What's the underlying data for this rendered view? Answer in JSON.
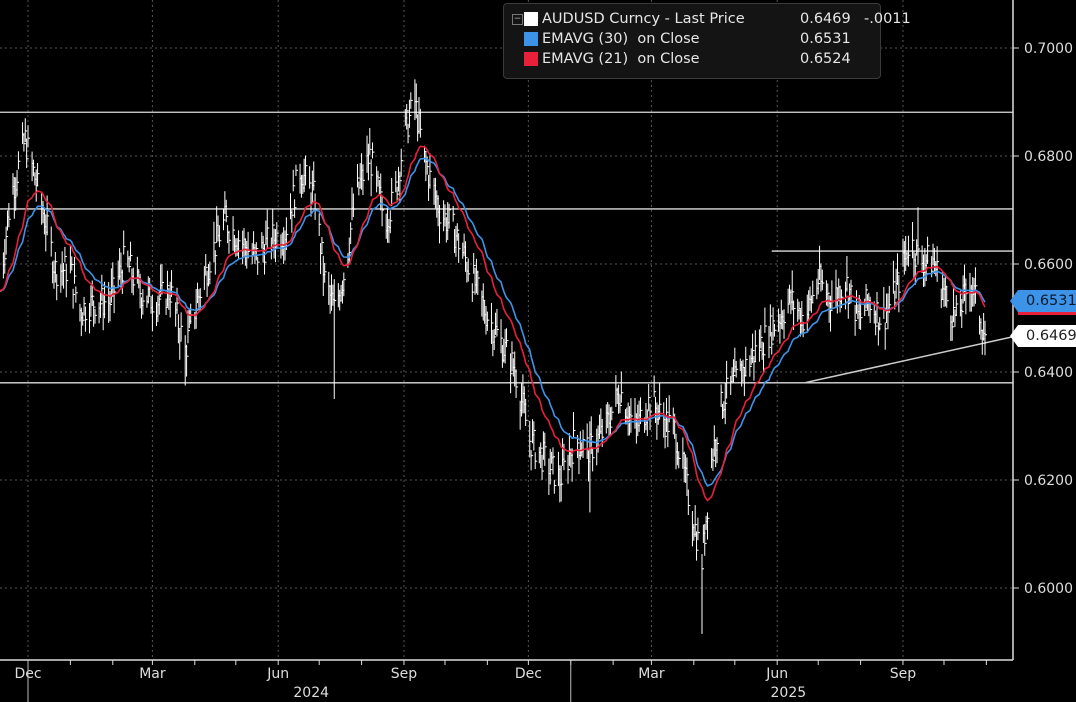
{
  "chart_data": {
    "type": "line",
    "title": "AUDUSD Curncy - Last Price",
    "ylim": [
      0.591,
      0.7045
    ],
    "y_ticks": [
      "0.7000",
      "0.6800",
      "0.6600",
      "0.6400",
      "0.6200",
      "0.6000"
    ],
    "x_ticks": [
      {
        "label": "Dec",
        "date": "2023-12-01"
      },
      {
        "label": "Mar",
        "date": "2024-03-01"
      },
      {
        "label": "Jun",
        "date": "2024-06-01"
      },
      {
        "label": "Sep",
        "date": "2024-09-01"
      },
      {
        "label": "Dec",
        "date": "2024-12-01"
      },
      {
        "label": "Mar",
        "date": "2025-03-01"
      },
      {
        "label": "Jun",
        "date": "2025-06-01"
      },
      {
        "label": "Sep",
        "date": "2025-09-01"
      }
    ],
    "year_labels": [
      {
        "label": "2024",
        "date": "2024-07-01"
      },
      {
        "label": "2025",
        "date": "2025-06-15"
      }
    ],
    "legend": [
      {
        "name": "AUDUSD Curncy - Last Price",
        "value": "0.6469",
        "change": "-.0011",
        "color": "#ffffff"
      },
      {
        "name": "EMAVG (30)  on Close",
        "value": "0.6531",
        "color": "#3d93e8"
      },
      {
        "name": "EMAVG (21)  on Close",
        "value": "0.6524",
        "color": "#e8203a"
      }
    ],
    "last_price_tag": "0.6469",
    "ema30_tag": "0.6531",
    "series": [
      {
        "name": "AUDUSD close",
        "points": [
          [
            "2023-11-10",
            0.655
          ],
          [
            "2023-11-18",
            0.672
          ],
          [
            "2023-11-29",
            0.683
          ],
          [
            "2023-12-10",
            0.672
          ],
          [
            "2023-12-21",
            0.659
          ],
          [
            "2024-01-01",
            0.659
          ],
          [
            "2024-01-08",
            0.6515
          ],
          [
            "2024-01-19",
            0.653
          ],
          [
            "2024-01-30",
            0.653
          ],
          [
            "2024-02-10",
            0.661
          ],
          [
            "2024-02-21",
            0.655
          ],
          [
            "2024-03-03",
            0.653
          ],
          [
            "2024-03-14",
            0.655
          ],
          [
            "2024-03-25",
            0.644
          ],
          [
            "2024-04-01",
            0.6515
          ],
          [
            "2024-04-12",
            0.661
          ],
          [
            "2024-04-23",
            0.668
          ],
          [
            "2024-05-04",
            0.6645
          ],
          [
            "2024-05-15",
            0.661
          ],
          [
            "2024-05-26",
            0.6645
          ],
          [
            "2024-06-06",
            0.666
          ],
          [
            "2024-06-17",
            0.6775
          ],
          [
            "2024-06-28",
            0.672
          ],
          [
            "2024-07-05",
            0.657
          ],
          [
            "2024-07-12",
            0.6515
          ],
          [
            "2024-07-20",
            0.659
          ],
          [
            "2024-07-27",
            0.672
          ],
          [
            "2024-08-07",
            0.68
          ],
          [
            "2024-08-18",
            0.668
          ],
          [
            "2024-08-25",
            0.672
          ],
          [
            "2024-09-02",
            0.6848
          ],
          [
            "2024-09-09",
            0.69
          ],
          [
            "2024-09-16",
            0.6793
          ],
          [
            "2024-09-27",
            0.67
          ],
          [
            "2024-10-08",
            0.666
          ],
          [
            "2024-10-19",
            0.659
          ],
          [
            "2024-10-30",
            0.6515
          ],
          [
            "2024-11-10",
            0.646
          ],
          [
            "2024-11-21",
            0.6406
          ],
          [
            "2024-12-02",
            0.6274
          ],
          [
            "2024-12-13",
            0.6237
          ],
          [
            "2024-12-24",
            0.62
          ],
          [
            "2025-01-04",
            0.6274
          ],
          [
            "2025-01-15",
            0.6256
          ],
          [
            "2025-01-26",
            0.6293
          ],
          [
            "2025-02-06",
            0.6367
          ],
          [
            "2025-02-17",
            0.6293
          ],
          [
            "2025-02-28",
            0.6348
          ],
          [
            "2025-03-11",
            0.631
          ],
          [
            "2025-03-18",
            0.6293
          ],
          [
            "2025-04-07",
            0.605
          ],
          [
            "2025-04-14",
            0.6237
          ],
          [
            "2025-04-22",
            0.6348
          ],
          [
            "2025-05-02",
            0.6385
          ],
          [
            "2025-05-12",
            0.6422
          ],
          [
            "2025-05-22",
            0.646
          ],
          [
            "2025-06-01",
            0.6496
          ],
          [
            "2025-06-11",
            0.6533
          ],
          [
            "2025-06-21",
            0.6496
          ],
          [
            "2025-07-01",
            0.657
          ],
          [
            "2025-07-11",
            0.6533
          ],
          [
            "2025-07-21",
            0.657
          ],
          [
            "2025-07-31",
            0.6496
          ],
          [
            "2025-08-07",
            0.6533
          ],
          [
            "2025-08-17",
            0.6496
          ],
          [
            "2025-08-27",
            0.6552
          ],
          [
            "2025-09-06",
            0.6645
          ],
          [
            "2025-09-13",
            0.6607
          ],
          [
            "2025-09-23",
            0.6607
          ],
          [
            "2025-10-03",
            0.6533
          ],
          [
            "2025-10-10",
            0.6496
          ],
          [
            "2025-10-20",
            0.657
          ],
          [
            "2025-10-31",
            0.6469
          ]
        ]
      }
    ],
    "extremes": [
      [
        "2023-11-29",
        0.687,
        "high"
      ],
      [
        "2024-03-25",
        0.6375,
        "low"
      ],
      [
        "2024-07-12",
        0.635,
        "low"
      ],
      [
        "2024-09-09",
        0.6942,
        "high"
      ],
      [
        "2025-01-15",
        0.614,
        "low"
      ],
      [
        "2025-04-07",
        0.5915,
        "low"
      ],
      [
        "2025-09-13",
        0.6705,
        "high"
      ]
    ],
    "horizontal_levels": [
      0.6881,
      0.6702,
      0.638
    ],
    "resistance_segment": {
      "from": "2025-05-28",
      "level": 0.6624
    },
    "trendline": {
      "from_date": "2025-06-21",
      "from": 0.638,
      "to_date": "2025-11-20",
      "to": 0.6465
    }
  }
}
